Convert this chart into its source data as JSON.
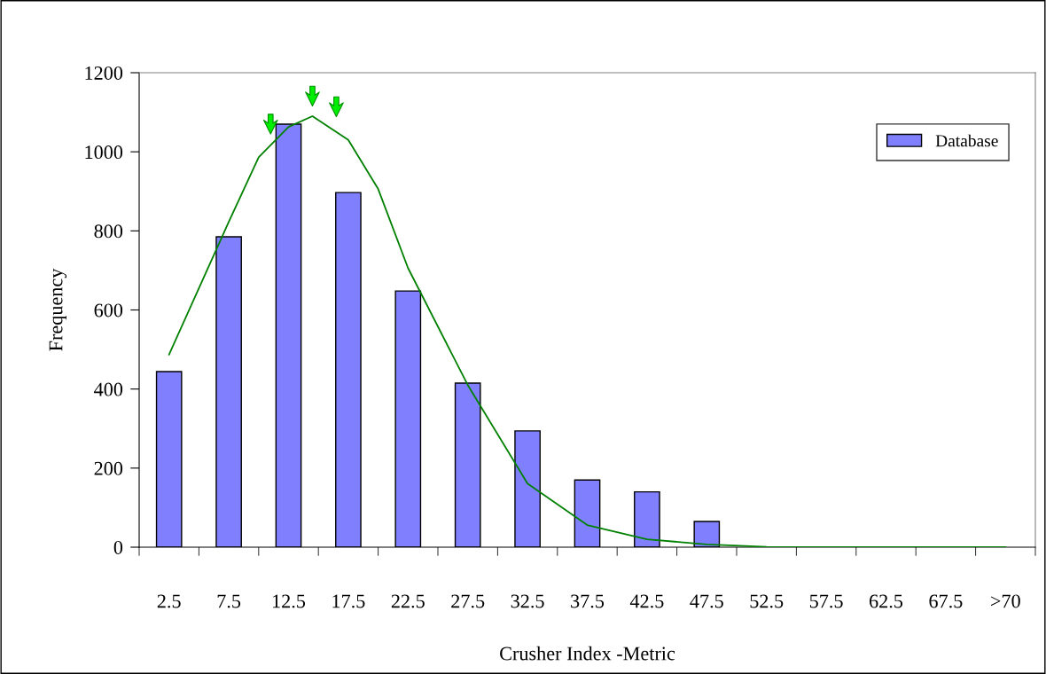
{
  "chart_data": {
    "type": "bar",
    "xlabel": "Crusher Index -Metric",
    "ylabel": "Frequency",
    "series": [
      {
        "name": "Database",
        "color": "#8080ff",
        "x": [
          2.5,
          7.5,
          12.5,
          17.5,
          22.5,
          27.5,
          32.5,
          37.5,
          42.5,
          47.5,
          52.5,
          57.5,
          62.5,
          67.5,
          72.5
        ],
        "values": [
          444,
          785,
          1070,
          897,
          648,
          415,
          294,
          170,
          140,
          65,
          0,
          0,
          0,
          0,
          0
        ]
      },
      {
        "type": "line",
        "color": "#008000",
        "x": [
          2.5,
          7.5,
          10,
          12.5,
          14.5,
          17.5,
          20,
          22.5,
          27.5,
          32.5,
          37.5,
          42.5,
          47.5,
          52.5,
          57.5,
          62.5,
          67.5,
          72.5
        ],
        "values": [
          487,
          823,
          986,
          1063,
          1090,
          1030,
          906,
          706,
          410,
          161,
          56,
          20,
          7,
          1,
          0,
          0,
          0,
          0
        ]
      },
      {
        "type": "scatter",
        "color": "#00ee00",
        "marker": "triangle",
        "x": [
          11,
          14.5,
          16.5
        ],
        "values": [
          1070,
          1141,
          1114
        ]
      }
    ],
    "xlim": [
      0,
      75
    ],
    "xticks": [
      2.5,
      7.5,
      12.5,
      17.5,
      22.5,
      27.5,
      32.5,
      37.5,
      42.5,
      47.5,
      52.5,
      57.5,
      62.5,
      67.5,
      {
        "value": 72.5,
        "label": ">70"
      }
    ],
    "ylim": [
      0,
      1200
    ],
    "yticks": [
      0,
      200,
      400,
      600,
      800,
      1000,
      1200
    ],
    "grid": false,
    "legend": "top right"
  }
}
